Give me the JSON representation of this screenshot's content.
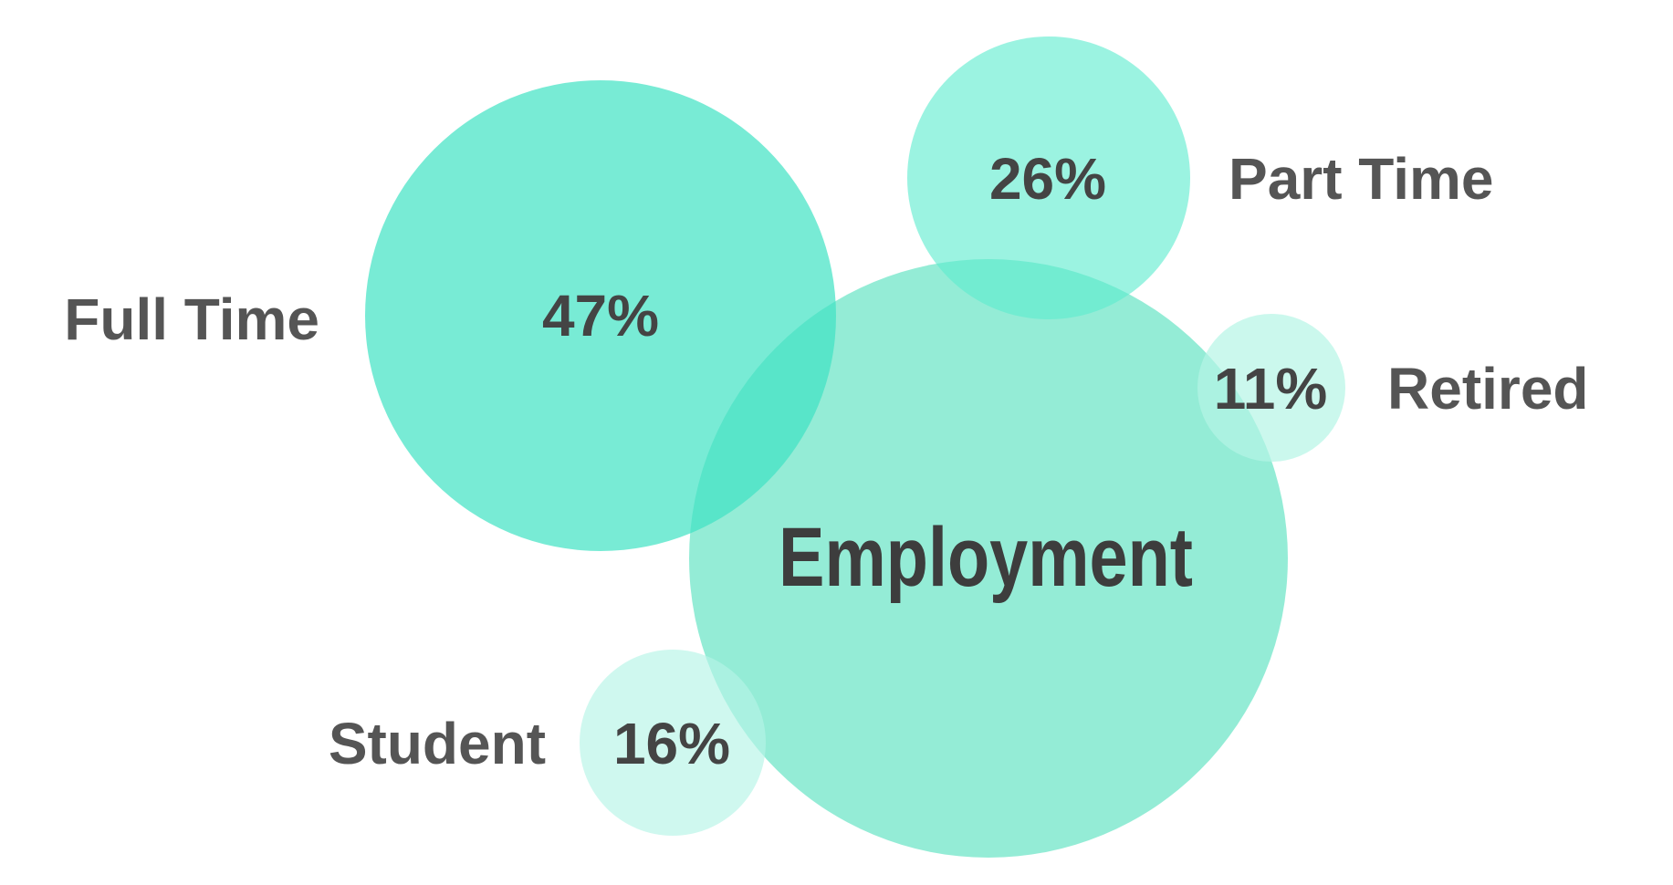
{
  "chart_data": {
    "type": "bubble",
    "title": "Employment",
    "categories": [
      "Full Time",
      "Part Time",
      "Retired",
      "Student"
    ],
    "values": [
      47,
      26,
      11,
      16
    ],
    "value_labels": [
      "47%",
      "26%",
      "11%",
      "16%"
    ],
    "unit": "%",
    "colors": {
      "center": "#70e6c8",
      "full_time": "#3fe2c3",
      "part_time": "#5eecce",
      "retired": "#b5f5e6",
      "student": "#b5f5e6",
      "label_text": "#555555",
      "title_text": "#3d3d3d"
    }
  }
}
